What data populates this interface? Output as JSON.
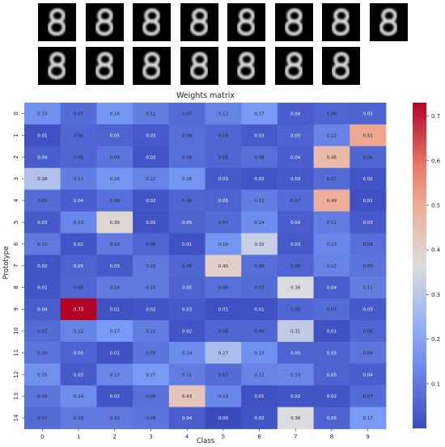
{
  "prototype_images": {
    "count": 15,
    "icon": "digit-8-prototype-image"
  },
  "chart_data": {
    "type": "heatmap",
    "title": "Weights matrix",
    "xlabel": "Class",
    "ylabel": "Prototype",
    "x_categories": [
      "0",
      "1",
      "2",
      "3",
      "4",
      "5",
      "6",
      "7",
      "8",
      "9"
    ],
    "y_categories": [
      "0",
      "1",
      "2",
      "3",
      "4",
      "5",
      "6",
      "7",
      "8",
      "9",
      "10",
      "11",
      "12",
      "13",
      "14"
    ],
    "values": [
      [
        0.15,
        0.07,
        0.16,
        0.11,
        0.07,
        0.12,
        0.17,
        0.04,
        0.06,
        0.05
      ],
      [
        0.01,
        0.06,
        0.05,
        0.03,
        0.08,
        0.06,
        0.03,
        0.05,
        0.12,
        0.51
      ],
      [
        0.04,
        0.06,
        0.09,
        0.02,
        0.08,
        0.06,
        0.08,
        0.04,
        0.46,
        0.06
      ],
      [
        0.28,
        0.11,
        0.16,
        0.12,
        0.16,
        0.03,
        0.02,
        0.03,
        0.07,
        0.02
      ],
      [
        0.07,
        0.04,
        0.08,
        0.02,
        0.06,
        0.05,
        0.11,
        0.07,
        0.49,
        0.01
      ],
      [
        0.03,
        0.13,
        0.39,
        0.01,
        0.05,
        0.07,
        0.14,
        0.04,
        0.11,
        0.03
      ],
      [
        0.1,
        0.02,
        0.1,
        0.06,
        0.01,
        0.16,
        0.32,
        0.03,
        0.13,
        0.08
      ],
      [
        0.02,
        0.05,
        0.03,
        0.1,
        0.06,
        0.4,
        0.08,
        0.06,
        0.12,
        0.09
      ],
      [
        0.02,
        0.06,
        0.1,
        0.1,
        0.05,
        0.08,
        0.07,
        0.36,
        0.04,
        0.11
      ],
      [
        0.04,
        0.73,
        0.01,
        0.02,
        0.03,
        0.01,
        0.01,
        0.06,
        0.07,
        0.03
      ],
      [
        0.07,
        0.12,
        0.17,
        0.11,
        0.02,
        0.06,
        0.06,
        0.31,
        0.01,
        0.06
      ],
      [
        0.09,
        0.05,
        0.01,
        0.09,
        0.14,
        0.27,
        0.15,
        0.05,
        0.05,
        0.09
      ],
      [
        0.15,
        0.03,
        0.13,
        0.17,
        0.11,
        0.07,
        0.12,
        0.13,
        0.05,
        0.04
      ],
      [
        0.09,
        0.14,
        0.02,
        0.08,
        0.43,
        0.13,
        0.01,
        0.02,
        0.02,
        0.07
      ],
      [
        0.07,
        0.1,
        0.1,
        0.09,
        0.04,
        0.0,
        0.02,
        0.36,
        0.05,
        0.17
      ]
    ],
    "value_format": "2 decimals",
    "colormap": "coolwarm",
    "vmin": 0.0,
    "vmax": 0.73,
    "colorbar_ticks": [
      "0.1",
      "0.2",
      "0.3",
      "0.4",
      "0.5",
      "0.6",
      "0.7"
    ],
    "colorbar_tick_values": [
      0.1,
      0.2,
      0.3,
      0.4,
      0.5,
      0.6,
      0.7
    ]
  }
}
